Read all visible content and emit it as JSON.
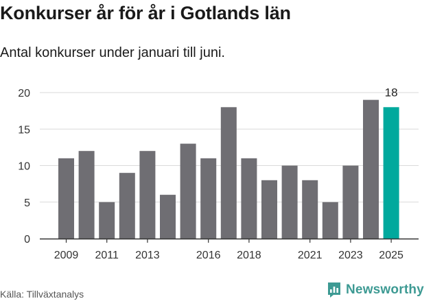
{
  "chart_data": {
    "type": "bar",
    "title": "Konkurser år för år i Gotlands län",
    "subtitle": "Antal konkurser under januari till juni.",
    "xlabel": "",
    "ylabel": "",
    "categories": [
      "2009",
      "2010",
      "2011",
      "2012",
      "2013",
      "2014",
      "2015",
      "2016",
      "2017",
      "2018",
      "2019",
      "2020",
      "2021",
      "2022",
      "2023",
      "2024",
      "2025"
    ],
    "values": [
      11,
      12,
      5,
      9,
      12,
      6,
      13,
      11,
      18,
      11,
      8,
      10,
      8,
      5,
      10,
      19,
      18
    ],
    "x_tick_labels": [
      "2009",
      "2011",
      "2013",
      "2016",
      "2018",
      "2021",
      "2023",
      "2025"
    ],
    "y_ticks": [
      0,
      5,
      10,
      15,
      20
    ],
    "ylim": [
      0,
      20
    ],
    "grid": true,
    "highlight": {
      "category": "2025",
      "label": "18"
    },
    "colors": {
      "bar": "#6f6e73",
      "highlight": "#00a99d",
      "grid": "#d9d9d9",
      "axis": "#333333"
    }
  },
  "footer": {
    "source": "Källa: Tillväxtanalys",
    "brand": "Newsworthy",
    "brand_icon": "newsworthy-logo-icon",
    "brand_color": "#3d9a93"
  }
}
